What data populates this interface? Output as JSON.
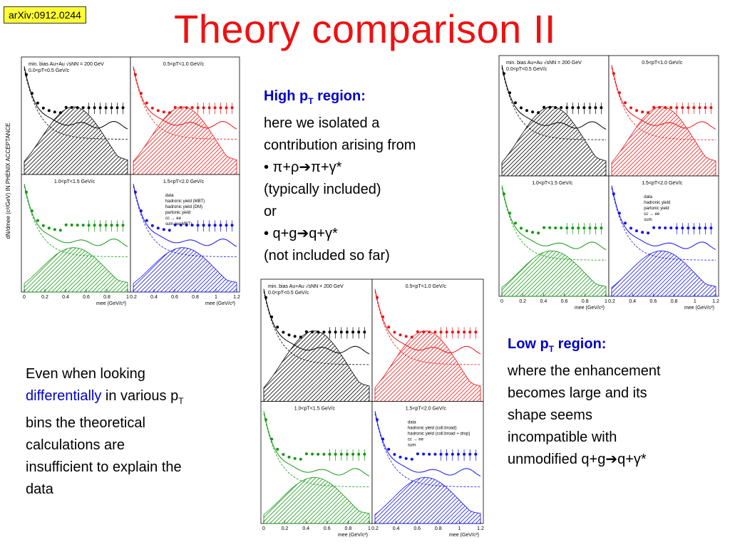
{
  "badge": "arXiv:0912.0244",
  "title": "Theory comparison II",
  "high_pt": {
    "heading": "High p",
    "heading_sub": "T",
    "heading_rest": " region:",
    "lines": [
      "here we isolated a",
      "contribution arising from",
      "(typically included)",
      "or",
      "(not included so far)"
    ],
    "bullet1": "• π+ρ➔π+γ*",
    "bullet2": "• q+g➔q+γ*"
  },
  "low_pt": {
    "heading": "Low p",
    "heading_sub": "T",
    "heading_rest": " region:",
    "lines": [
      "where the enhancement",
      "becomes large and its",
      "shape seems",
      "incompatible with",
      "unmodified q+g➔q+γ*"
    ]
  },
  "left_note": {
    "l1": "Even when looking",
    "l2a": "differentially",
    "l2b": " in various p",
    "l2sub": "T",
    "l3": "bins the theoretical",
    "l4": "calculations are",
    "l5": "insufficient to explain the",
    "l6": "data"
  },
  "figures": {
    "fig1": {
      "p1": {
        "label": "min. bias Au+Au √sNN = 200 GeV",
        "pt": "0.0<pT<0.5 GeV/c"
      },
      "p2": {
        "pt": "0.5<pT<1.0 GeV/c"
      },
      "p3": {
        "pt": "1.0<pT<1.5 GeV/c"
      },
      "p4": {
        "pt": "1.5<pT<2.0 GeV/c",
        "legend": [
          "data",
          "hadronic yield (MBT)",
          "hadronic yield (DM)",
          "partonic yield",
          "cc → ee",
          "sum (w/ MBT)"
        ]
      },
      "xlabel": "mee (GeV/c²)",
      "ylabel": "dN/dmee (c²/GeV) IN PHENIX ACCEPTANCE",
      "xticks1": [
        "0",
        "0.2",
        "0.4",
        "0.6",
        "0.8",
        "1"
      ],
      "xticks2": [
        "0.2",
        "0.4",
        "0.6",
        "0.8",
        "1",
        "1.2"
      ]
    },
    "fig2": {
      "p1": {
        "label": "min. bias Au+Au √sNN = 200 GeV",
        "pt": "0.0<pT<0.5 GeV/c"
      },
      "p2": {
        "pt": "0.5<pT<1.0 GeV/c"
      },
      "p3": {
        "pt": "1.0<pT<1.5 GeV/c"
      },
      "p4": {
        "pt": "1.5<pT<2.0 GeV/c",
        "legend": [
          "data",
          "hadronic yield",
          "partonic yield",
          "cc → ee",
          "sum"
        ]
      },
      "xlabel": "mee (GeV/c²)",
      "xticks1": [
        "0",
        "0.2",
        "0.4",
        "0.6",
        "0.8",
        "1"
      ],
      "xticks2": [
        "0.2",
        "0.4",
        "0.6",
        "0.8",
        "1",
        "1.2"
      ]
    },
    "fig3": {
      "p1": {
        "label": "min. bias Au+Au √sNN = 200 GeV",
        "pt": "0.0<pT<0.5 GeV/c"
      },
      "p2": {
        "pt": "0.5<pT<1.0 GeV/c"
      },
      "p3": {
        "pt": "1.0<pT<1.5 GeV/c"
      },
      "p4": {
        "pt": "1.5<pT<2.0 GeV/c",
        "legend": [
          "data",
          "hadronic yield (coll.broad)",
          "hadronic yield (coll.broad + drop)",
          "cc → ee",
          "sum"
        ]
      },
      "xlabel": "mee (GeV/c²)",
      "xticks1": [
        "0",
        "0.2",
        "0.4",
        "0.6",
        "0.8",
        "1"
      ],
      "xticks2": [
        "0.2",
        "0.4",
        "0.6",
        "0.8",
        "1",
        "1.2"
      ]
    }
  },
  "colors": {
    "title": "#ee1111",
    "heading": "#0000cc",
    "p1": "#000000",
    "p2": "#ee1111",
    "p3": "#119911",
    "p4": "#1111ee"
  }
}
